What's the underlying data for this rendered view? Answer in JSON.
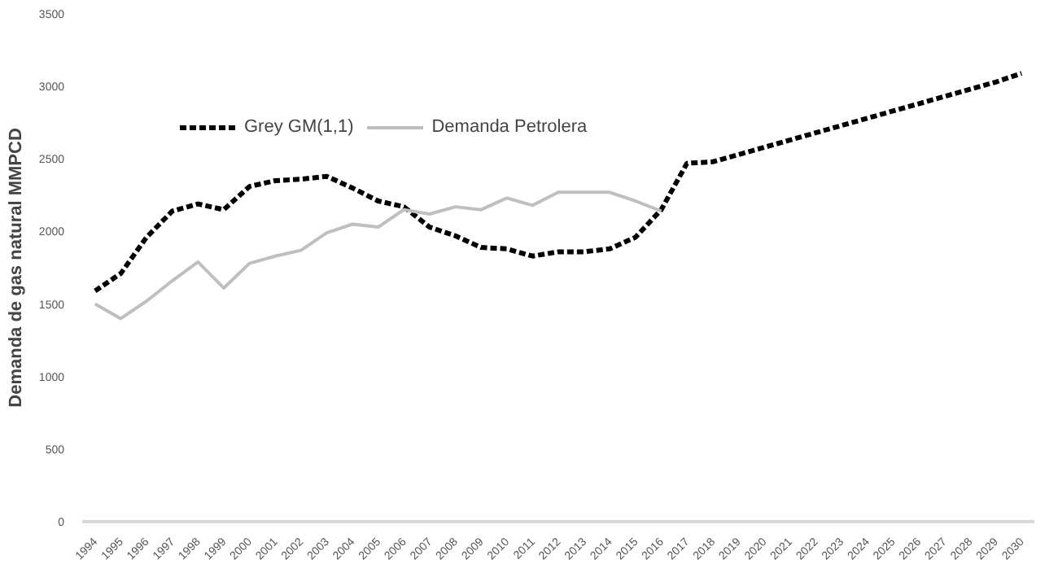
{
  "chart_data": {
    "type": "line",
    "ylabel": "Demanda de gas natural MMPCD",
    "categories": [
      "1994",
      "1995",
      "1996",
      "1997",
      "1998",
      "1999",
      "2000",
      "2001",
      "2002",
      "2003",
      "2004",
      "2005",
      "2006",
      "2007",
      "2008",
      "2009",
      "2010",
      "2011",
      "2012",
      "2013",
      "2014",
      "2015",
      "2016",
      "2017",
      "2018",
      "2019",
      "2020",
      "2021",
      "2022",
      "2023",
      "2024",
      "2025",
      "2026",
      "2027",
      "2028",
      "2029",
      "2030"
    ],
    "series": [
      {
        "name": "Grey GM(1,1)",
        "color": "#000000",
        "line_style": "dashed",
        "values": [
          1590,
          1710,
          1960,
          2140,
          2190,
          2150,
          2310,
          2350,
          2360,
          2380,
          2300,
          2210,
          2170,
          2030,
          1970,
          1890,
          1880,
          1830,
          1860,
          1860,
          1880,
          1960,
          2150,
          2470,
          2480,
          2530,
          2580,
          2630,
          2680,
          2730,
          2780,
          2830,
          2880,
          2930,
          2980,
          3030,
          3090
        ]
      },
      {
        "name": "Demanda Petrolera",
        "color": "#bfbfbf",
        "line_style": "solid",
        "values": [
          1500,
          1400,
          1520,
          1660,
          1790,
          1610,
          1780,
          1830,
          1870,
          1990,
          2050,
          2030,
          2150,
          2120,
          2170,
          2150,
          2230,
          2180,
          2270,
          2270,
          2270,
          2210,
          2140,
          null,
          null,
          null,
          null,
          null,
          null,
          null,
          null,
          null,
          null,
          null,
          null,
          null,
          null
        ]
      }
    ],
    "ylim": [
      0,
      3500
    ],
    "yticks": [
      0,
      500,
      1000,
      1500,
      2000,
      2500,
      3000,
      3500
    ],
    "grid": false,
    "legend": "top left"
  }
}
